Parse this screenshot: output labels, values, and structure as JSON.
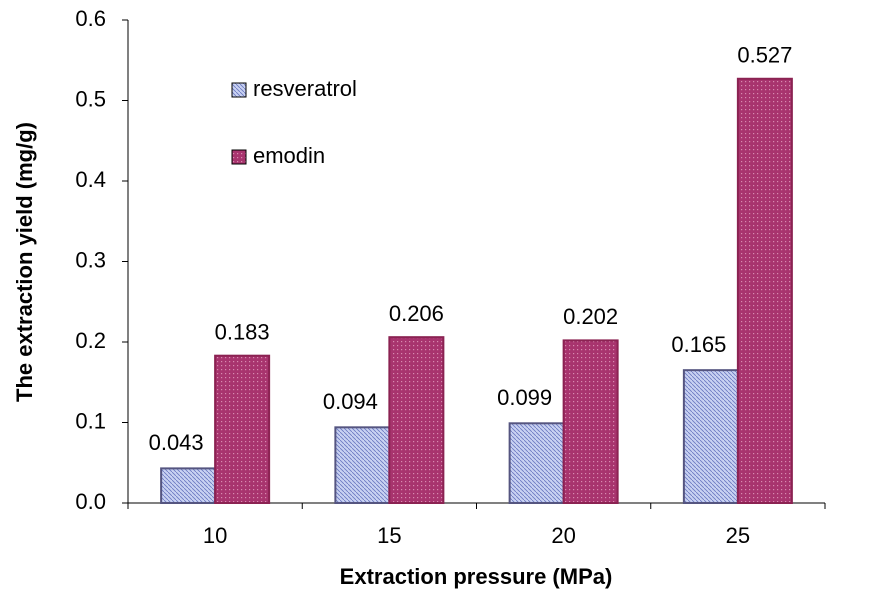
{
  "chart_data": {
    "type": "bar",
    "x_label": "Extraction pressure (MPa)",
    "y_label": "The extraction yield (mg/g)",
    "categories": [
      "10",
      "15",
      "20",
      "25"
    ],
    "series": [
      {
        "name": "resveratrol",
        "color": "#c9d2f2",
        "values": [
          0.043,
          0.094,
          0.099,
          0.165
        ]
      },
      {
        "name": "emodin",
        "color": "#a8346e",
        "values": [
          0.183,
          0.206,
          0.202,
          0.527
        ]
      }
    ],
    "ylim": [
      0,
      0.6
    ],
    "yticks": [
      {
        "value": 0,
        "label": "0.0"
      },
      0.1,
      0.2,
      0.3,
      0.4,
      0.5,
      0.6
    ],
    "grid": false
  }
}
